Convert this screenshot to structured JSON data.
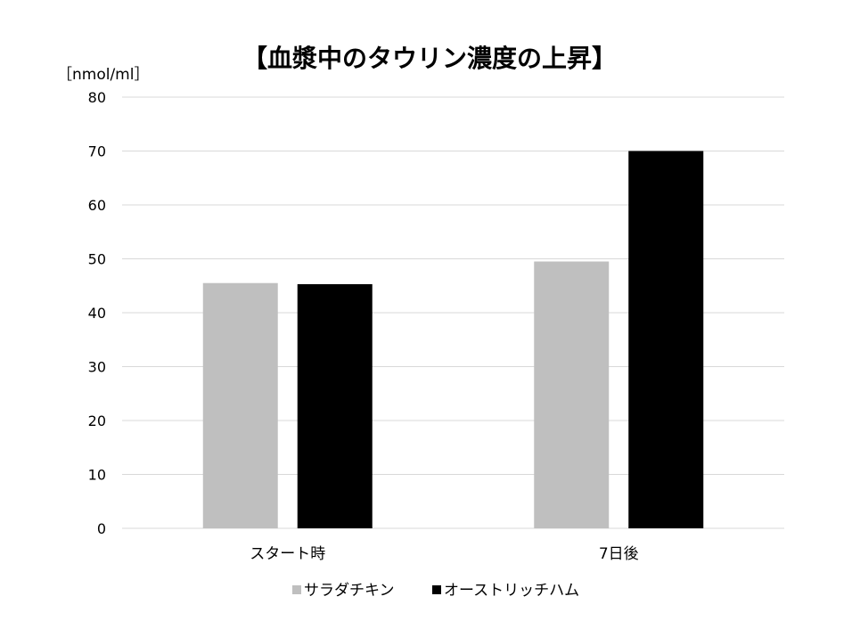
{
  "chart_data": {
    "type": "bar",
    "title": "【血漿中のタウリン濃度の上昇】",
    "unit_label": "［nmol/ml］",
    "categories": [
      "スタート時",
      "7日後"
    ],
    "series": [
      {
        "name": "サラダチキン",
        "color": "#bfbfbf",
        "values": [
          45.5,
          49.5
        ]
      },
      {
        "name": "オーストリッチハム",
        "color": "#000000",
        "values": [
          45.3,
          70
        ]
      }
    ],
    "ylim": [
      0,
      80
    ],
    "yticks": [
      0,
      10,
      20,
      30,
      40,
      50,
      60,
      70,
      80
    ],
    "grid": true,
    "gridline_color": "#d9d9d9",
    "legend_position": "bottom"
  }
}
